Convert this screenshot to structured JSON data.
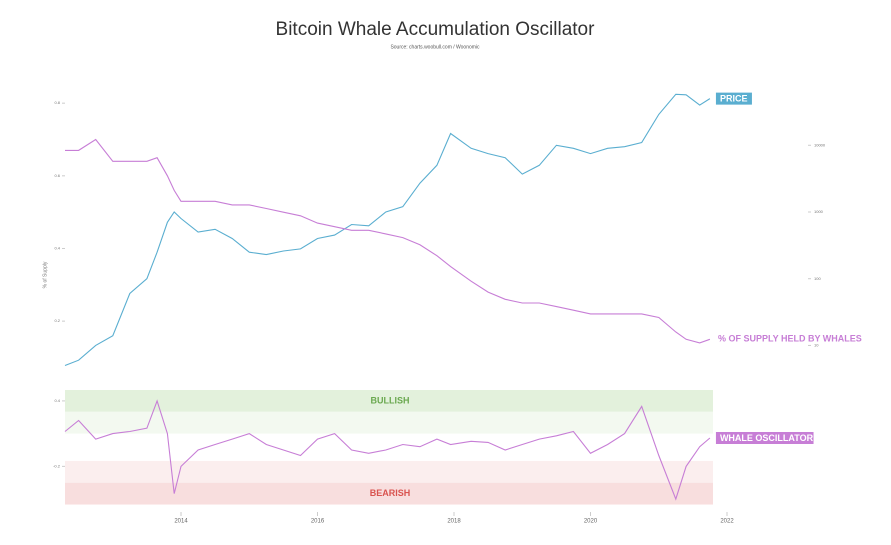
{
  "title": "Bitcoin Whale Accumulation Oscillator",
  "source": "Source: charts.woobull.com / Woonomic",
  "chart_data": [
    {
      "type": "line",
      "ylabel": "% of Supply",
      "x": [
        2012.3,
        2012.5,
        2012.75,
        2013.0,
        2013.25,
        2013.5,
        2013.65,
        2013.8,
        2013.9,
        2014.0,
        2014.25,
        2014.5,
        2014.75,
        2015.0,
        2015.25,
        2015.5,
        2015.75,
        2016.0,
        2016.25,
        2016.5,
        2016.75,
        2017.0,
        2017.25,
        2017.5,
        2017.75,
        2017.95,
        2018.25,
        2018.5,
        2018.75,
        2019.0,
        2019.25,
        2019.5,
        2019.75,
        2020.0,
        2020.25,
        2020.5,
        2020.75,
        2021.0,
        2021.25,
        2021.4,
        2021.6,
        2021.75
      ],
      "xlim": [
        2012.3,
        2022
      ],
      "xticks": [
        2014,
        2016,
        2018,
        2020,
        2022
      ],
      "ylim": [
        0.06,
        0.85
      ],
      "yticks": [
        0.2,
        0.4,
        0.6,
        0.8
      ],
      "y2lim": [
        4,
        80000
      ],
      "y2ticks": [
        10,
        100,
        1000,
        10000
      ],
      "y2log": true,
      "series": [
        {
          "name": "PRICE",
          "color": "#5aaed0",
          "axis": "y2",
          "label_style": "box",
          "values": [
            5,
            6,
            10,
            14,
            60,
            100,
            250,
            700,
            1000,
            800,
            500,
            550,
            400,
            250,
            230,
            260,
            280,
            400,
            450,
            650,
            620,
            1000,
            1200,
            2700,
            5000,
            15000,
            9000,
            7500,
            6500,
            3700,
            5000,
            10000,
            9000,
            7500,
            9000,
            9500,
            11000,
            29000,
            58000,
            57000,
            40000,
            50000
          ]
        },
        {
          "name": "% OF SUPPLY HELD BY WHALES",
          "color": "#c77ed6",
          "axis": "y",
          "label_style": "text",
          "values": [
            0.67,
            0.67,
            0.7,
            0.64,
            0.64,
            0.64,
            0.65,
            0.6,
            0.56,
            0.53,
            0.53,
            0.53,
            0.52,
            0.52,
            0.51,
            0.5,
            0.49,
            0.47,
            0.46,
            0.45,
            0.45,
            0.44,
            0.43,
            0.41,
            0.38,
            0.35,
            0.31,
            0.28,
            0.26,
            0.25,
            0.25,
            0.24,
            0.23,
            0.22,
            0.22,
            0.22,
            0.22,
            0.21,
            0.17,
            0.15,
            0.14,
            0.15
          ]
        }
      ]
    },
    {
      "type": "line",
      "x": [
        2012.3,
        2012.5,
        2012.75,
        2013.0,
        2013.25,
        2013.5,
        2013.65,
        2013.8,
        2013.9,
        2014.0,
        2014.25,
        2014.5,
        2014.75,
        2015.0,
        2015.25,
        2015.5,
        2015.75,
        2016.0,
        2016.25,
        2016.5,
        2016.75,
        2017.0,
        2017.25,
        2017.5,
        2017.75,
        2017.95,
        2018.25,
        2018.5,
        2018.75,
        2019.0,
        2019.25,
        2019.5,
        2019.75,
        2020.0,
        2020.25,
        2020.5,
        2020.75,
        2021.0,
        2021.25,
        2021.4,
        2021.6,
        2021.75
      ],
      "xlim": [
        2012.3,
        2022
      ],
      "ylim": [
        -0.6,
        0.5
      ],
      "yticks": [
        0.4,
        -0.2
      ],
      "bands": [
        {
          "from": 0.3,
          "to": 0.5,
          "color": "#e3f1dc",
          "label": "BULLISH",
          "label_color": "#6aa84f"
        },
        {
          "from": 0.1,
          "to": 0.3,
          "color": "#f3f9f0"
        },
        {
          "from": -0.35,
          "to": -0.15,
          "color": "#fbeeee"
        },
        {
          "from": -0.55,
          "to": -0.35,
          "color": "#f8dede",
          "label": "BEARISH",
          "label_color": "#d9534f"
        }
      ],
      "series": [
        {
          "name": "WHALE OSCILLATOR",
          "color": "#c77ed6",
          "label_style": "box",
          "values": [
            0.12,
            0.22,
            0.05,
            0.1,
            0.12,
            0.15,
            0.4,
            0.1,
            -0.45,
            -0.2,
            -0.05,
            0.0,
            0.05,
            0.1,
            0.0,
            -0.05,
            -0.1,
            0.05,
            0.1,
            -0.05,
            -0.08,
            -0.05,
            0.0,
            -0.02,
            0.05,
            0.0,
            0.03,
            0.02,
            -0.05,
            0.0,
            0.05,
            0.08,
            0.12,
            -0.08,
            0.0,
            0.1,
            0.35,
            -0.1,
            -0.5,
            -0.2,
            -0.02,
            0.06
          ]
        }
      ]
    }
  ]
}
